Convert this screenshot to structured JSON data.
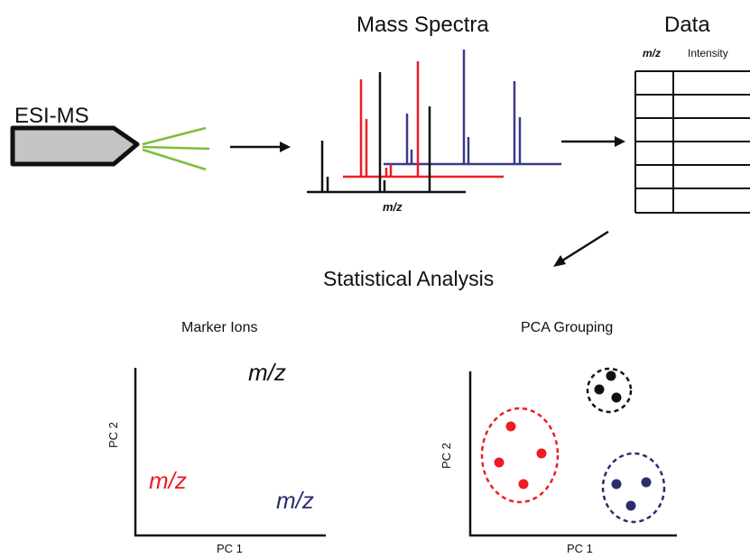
{
  "titles": {
    "mass_spectra": "Mass Spectra",
    "data": "Data",
    "esi_ms": "ESI-MS",
    "statistical_analysis": "Statistical Analysis",
    "marker_ions": "Marker Ions",
    "pca_grouping": "PCA Grouping"
  },
  "data_table": {
    "columns": [
      "m/z",
      "Intensity"
    ],
    "row_count": 6
  },
  "spectra": {
    "axis_label": "m/z",
    "series": [
      {
        "color": "#111111",
        "peaks": [
          0.05,
          0.19,
          0.46,
          0.56
        ]
      },
      {
        "color": "#ee1c24",
        "peaks": [
          0.12,
          0.16,
          0.25,
          0.3,
          0.46
        ]
      },
      {
        "color": "#3a3a8c",
        "peaks": [
          0.12,
          0.16,
          0.48,
          0.51,
          0.78,
          0.82
        ]
      }
    ],
    "colors": {
      "black": "#111111",
      "red": "#ee1c24",
      "blue": "#3a3a8c",
      "needle_tips": "#7cbf3a"
    }
  },
  "marker_ions": {
    "x_label": "PC 1",
    "y_label": "PC 2",
    "labels": [
      {
        "text": "m/z",
        "color": "#111111"
      },
      {
        "text": "m/z",
        "color": "#ee1c24"
      },
      {
        "text": "m/z",
        "color": "#2b2d6e"
      }
    ]
  },
  "pca_grouping": {
    "x_label": "PC 1",
    "y_label": "PC 2",
    "groups": [
      {
        "color": "#ee1c24",
        "points": 4
      },
      {
        "color": "#111111",
        "points": 3
      },
      {
        "color": "#2b2d6e",
        "points": 3
      }
    ]
  }
}
